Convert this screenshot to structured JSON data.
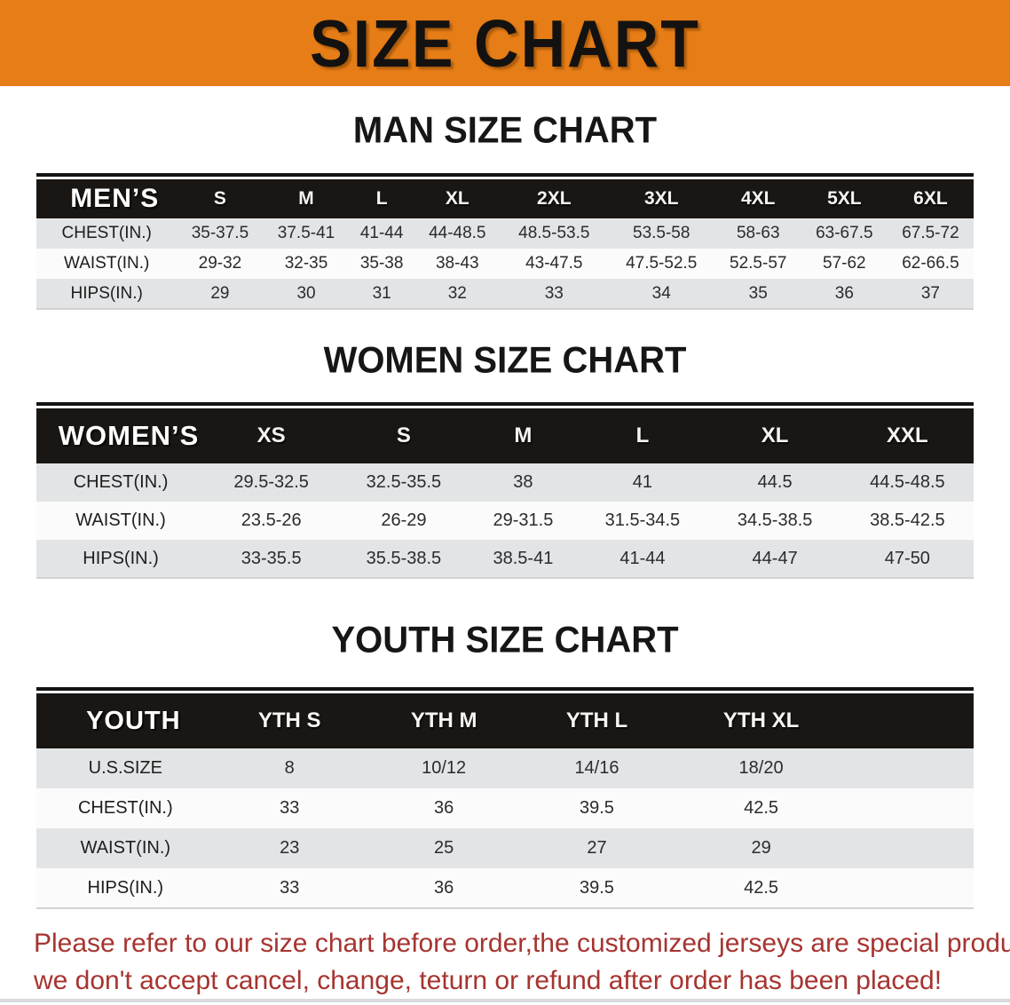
{
  "banner": {
    "title": "SIZE CHART",
    "bg_color": "#E67D16",
    "text_color": "#141210"
  },
  "sections": [
    {
      "id": "man",
      "heading": "MAN SIZE CHART",
      "table": {
        "header_label": "MEN’S",
        "columns": [
          "S",
          "M",
          "L",
          "XL",
          "2XL",
          "3XL",
          "4XL",
          "5XL",
          "6XL"
        ],
        "rows": [
          {
            "label": "CHEST(IN.)",
            "values": [
              "35-37.5",
              "37.5-41",
              "41-44",
              "44-48.5",
              "48.5-53.5",
              "53.5-58",
              "58-63",
              "63-67.5",
              "67.5-72"
            ]
          },
          {
            "label": "WAIST(IN.)",
            "values": [
              "29-32",
              "32-35",
              "35-38",
              "38-43",
              "43-47.5",
              "47.5-52.5",
              "52.5-57",
              "57-62",
              "62-66.5"
            ]
          },
          {
            "label": "HIPS(IN.)",
            "values": [
              "29",
              "30",
              "31",
              "32",
              "33",
              "34",
              "35",
              "36",
              "37"
            ]
          }
        ]
      }
    },
    {
      "id": "women",
      "heading": "WOMEN SIZE CHART",
      "table": {
        "header_label": "WOMEN’S",
        "columns": [
          "XS",
          "S",
          "M",
          "L",
          "XL",
          "XXL"
        ],
        "rows": [
          {
            "label": "CHEST(IN.)",
            "values": [
              "29.5-32.5",
              "32.5-35.5",
              "38",
              "41",
              "44.5",
              "44.5-48.5"
            ]
          },
          {
            "label": "WAIST(IN.)",
            "values": [
              "23.5-26",
              "26-29",
              "29-31.5",
              "31.5-34.5",
              "34.5-38.5",
              "38.5-42.5"
            ]
          },
          {
            "label": "HIPS(IN.)",
            "values": [
              "33-35.5",
              "35.5-38.5",
              "38.5-41",
              "41-44",
              "44-47",
              "47-50"
            ]
          }
        ]
      }
    },
    {
      "id": "youth",
      "heading": "YOUTH SIZE CHART",
      "table": {
        "header_label": "YOUTH",
        "columns": [
          "YTH S",
          "YTH M",
          "YTH L",
          "YTH XL"
        ],
        "rows": [
          {
            "label": "U.S.SIZE",
            "values": [
              "8",
              "10/12",
              "14/16",
              "18/20"
            ]
          },
          {
            "label": "CHEST(IN.)",
            "values": [
              "33",
              "36",
              "39.5",
              "42.5"
            ]
          },
          {
            "label": "WAIST(IN.)",
            "values": [
              "23",
              "25",
              "27",
              "29"
            ]
          },
          {
            "label": "HIPS(IN.)",
            "values": [
              "33",
              "36",
              "39.5",
              "42.5"
            ]
          }
        ]
      }
    }
  ],
  "footer": {
    "line1": "Please refer to our size chart before order,the customized jerseys are special products,",
    "line2": "we don't accept cancel, change, teturn or refund after order has been placed!",
    "text_color": "#A63430"
  },
  "colors": {
    "banner_orange": "#E67D16",
    "header_black": "#191613",
    "row_gray": "#E2E4E6",
    "row_white": "#FBFBFB",
    "disclaimer_red": "#A63430"
  }
}
